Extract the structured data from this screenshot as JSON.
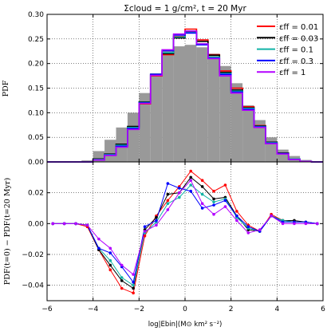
{
  "chart_data": [
    {
      "type": "step-histogram",
      "title": "Σcloud = 1 g/cm²,   t = 20 Myr",
      "ylabel": "PDF",
      "xlim": [
        -6,
        6
      ],
      "ylim": [
        0.0,
        0.3
      ],
      "grid": true,
      "legend_position": "top-right",
      "yticks": [
        "0.00",
        "0.05",
        "0.10",
        "0.15",
        "0.20",
        "0.25",
        "0.30"
      ],
      "bin_edges": [
        -6.0,
        -5.5,
        -5.0,
        -4.5,
        -4.0,
        -3.5,
        -3.0,
        -2.5,
        -2.0,
        -1.5,
        -1.0,
        -0.5,
        0.0,
        0.5,
        1.0,
        1.5,
        2.0,
        2.5,
        3.0,
        3.5,
        4.0,
        4.5,
        5.0,
        5.5,
        6.0
      ],
      "initial_pdf_filled": {
        "color": "#999999",
        "values": [
          0,
          0,
          0,
          0.003,
          0.022,
          0.045,
          0.07,
          0.1,
          0.14,
          0.18,
          0.225,
          0.235,
          0.238,
          0.233,
          0.22,
          0.195,
          0.16,
          0.115,
          0.085,
          0.05,
          0.025,
          0.012,
          0.004,
          0.001
        ]
      },
      "series": [
        {
          "name": "εff = 0.01",
          "color": "#ff0000",
          "values": [
            0,
            0,
            0,
            0.0,
            0.005,
            0.015,
            0.035,
            0.07,
            0.118,
            0.175,
            0.218,
            0.255,
            0.27,
            0.248,
            0.218,
            0.185,
            0.15,
            0.112,
            0.074,
            0.04,
            0.018,
            0.006,
            0.001,
            0
          ]
        },
        {
          "name": "εff = 0.03",
          "color": "#000000",
          "values": [
            0,
            0,
            0,
            0.0,
            0.006,
            0.016,
            0.036,
            0.072,
            0.122,
            0.178,
            0.22,
            0.252,
            0.265,
            0.245,
            0.217,
            0.182,
            0.146,
            0.11,
            0.073,
            0.04,
            0.018,
            0.006,
            0.001,
            0
          ]
        },
        {
          "name": "εff = 0.1",
          "color": "#11b3a6",
          "values": [
            0,
            0,
            0,
            0.0,
            0.005,
            0.015,
            0.034,
            0.07,
            0.121,
            0.178,
            0.222,
            0.254,
            0.263,
            0.24,
            0.213,
            0.18,
            0.144,
            0.109,
            0.072,
            0.039,
            0.017,
            0.006,
            0.001,
            0
          ]
        },
        {
          "name": "εff = 0.3",
          "color": "#0000ff",
          "values": [
            0,
            0,
            0,
            0.0,
            0.004,
            0.014,
            0.032,
            0.068,
            0.12,
            0.178,
            0.226,
            0.258,
            0.262,
            0.238,
            0.211,
            0.178,
            0.142,
            0.107,
            0.071,
            0.038,
            0.017,
            0.005,
            0.001,
            0
          ]
        },
        {
          "name": "εff = 1",
          "color": "#b300ff",
          "values": [
            0,
            0,
            0,
            0.0,
            0.004,
            0.013,
            0.03,
            0.066,
            0.119,
            0.176,
            0.228,
            0.26,
            0.266,
            0.24,
            0.21,
            0.175,
            0.14,
            0.105,
            0.07,
            0.037,
            0.016,
            0.005,
            0.001,
            0
          ]
        }
      ]
    },
    {
      "type": "line",
      "ylabel": "PDF(t=0) − PDF(t=20 Myr)",
      "xlabel": "log|Ebin|(M⊙ km² s⁻²)",
      "xlim": [
        -6,
        6
      ],
      "ylim": [
        -0.05,
        0.04
      ],
      "grid": true,
      "xticks": [
        "−6",
        "−4",
        "−2",
        "0",
        "2",
        "4",
        "6"
      ],
      "yticks": [
        "−0.04",
        "−0.02",
        "0.00",
        "0.02"
      ],
      "x": [
        -5.75,
        -5.25,
        -4.75,
        -4.25,
        -3.75,
        -3.25,
        -2.75,
        -2.25,
        -1.75,
        -1.25,
        -0.75,
        -0.25,
        0.25,
        0.75,
        1.25,
        1.75,
        2.25,
        2.75,
        3.25,
        3.75,
        4.25,
        4.75,
        5.25,
        5.75
      ],
      "series": [
        {
          "name": "εff = 0.01",
          "color": "#ff0000",
          "values": [
            0,
            0,
            0,
            -0.002,
            -0.017,
            -0.03,
            -0.042,
            -0.045,
            -0.008,
            0.005,
            0.015,
            0.024,
            0.034,
            0.028,
            0.021,
            0.025,
            0.008,
            -0.001,
            -0.005,
            0.006,
            0.002,
            0.001,
            0.001,
            0
          ]
        },
        {
          "name": "εff = 0.03",
          "color": "#000000",
          "values": [
            0,
            0,
            0,
            -0.001,
            -0.017,
            -0.027,
            -0.037,
            -0.042,
            -0.004,
            0.004,
            0.019,
            0.02,
            0.03,
            0.024,
            0.016,
            0.017,
            0.005,
            -0.004,
            -0.005,
            0.005,
            0.002,
            0.002,
            0.001,
            0
          ]
        },
        {
          "name": "εff = 0.1",
          "color": "#11b3a6",
          "values": [
            0,
            0,
            0,
            -0.001,
            -0.016,
            -0.024,
            -0.035,
            -0.04,
            -0.006,
            0.001,
            0.013,
            0.017,
            0.025,
            0.019,
            0.014,
            0.016,
            0.004,
            -0.003,
            -0.005,
            0.005,
            0.002,
            0.001,
            0.001,
            0
          ]
        },
        {
          "name": "εff = 0.3",
          "color": "#0000ff",
          "values": [
            0,
            0,
            0,
            -0.001,
            -0.016,
            -0.019,
            -0.028,
            -0.038,
            -0.002,
            0.002,
            0.026,
            0.023,
            0.021,
            0.01,
            0.012,
            0.015,
            0.005,
            -0.002,
            -0.005,
            0.005,
            0.001,
            0.001,
            0.001,
            0
          ]
        },
        {
          "name": "εff = 1",
          "color": "#b300ff",
          "values": [
            0,
            0,
            0,
            -0.001,
            -0.01,
            -0.016,
            -0.027,
            -0.033,
            -0.005,
            -0.001,
            0.009,
            0.02,
            0.028,
            0.013,
            0.006,
            0.011,
            0.002,
            -0.006,
            -0.004,
            0.005,
            0.0,
            0.0,
            0.0,
            0
          ]
        }
      ]
    }
  ]
}
